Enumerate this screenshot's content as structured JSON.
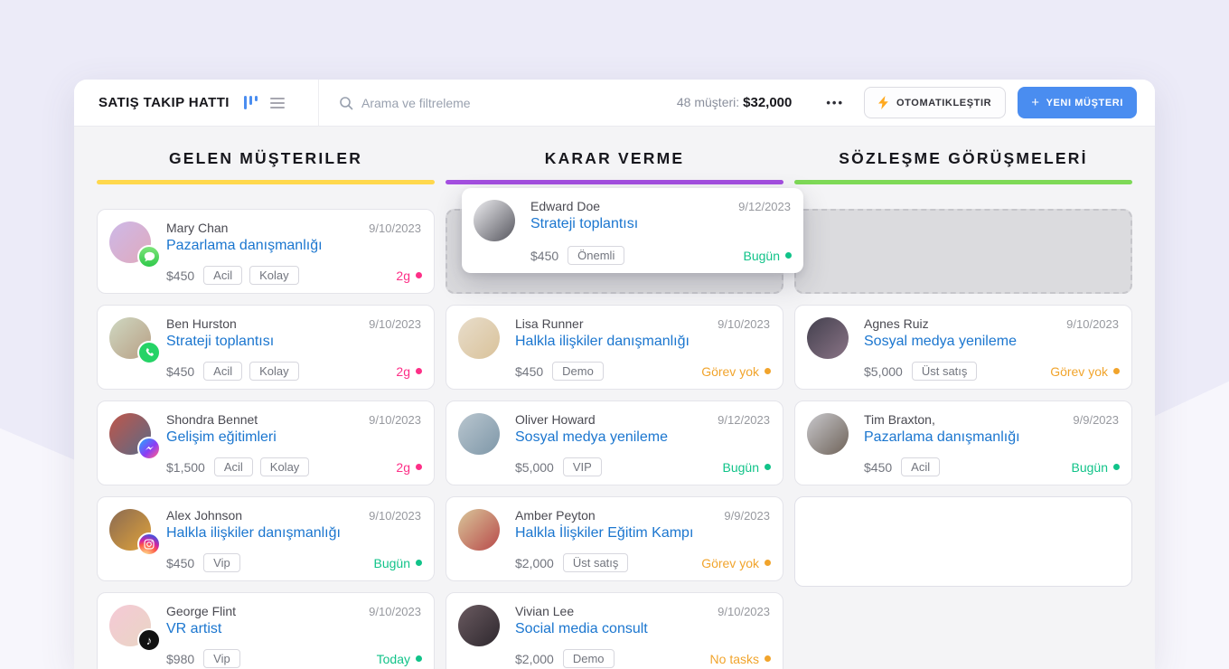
{
  "header": {
    "title": "SATIŞ TAKIP HATTI",
    "search_placeholder": "Arama ve filtreleme",
    "stats_label": "48 müşteri:",
    "stats_value": "$32,000",
    "more_label": "•••",
    "automate_label": "OTOMATIKLEŞTIR",
    "new_customer_plus": "+",
    "new_customer_label": "YENI MÜŞTERI",
    "icons": {
      "kanban_view": "kanban-columns-icon",
      "list_view": "list-menu-icon",
      "search": "search-icon",
      "more": "more-dots-icon",
      "automate_bolt": "lightning-icon",
      "new_plus": "plus-icon"
    }
  },
  "colors": {
    "accent_blue": "#4a8df0",
    "status_green": "#11c389",
    "status_pink": "#fd2f87",
    "status_amber": "#f1a42c",
    "column_accents": [
      "#ffd84d",
      "#a44fe0",
      "#7ed957"
    ]
  },
  "board": {
    "columns": [
      {
        "title": "GELEN MÜŞTERILER",
        "accent": "#ffd84d",
        "items": [
          {
            "kind": "card",
            "name": "Mary Chan",
            "date": "9/10/2023",
            "title": "Pazarlama danışmanlığı",
            "price": "$450",
            "tags": [
              "Acil",
              "Kolay"
            ],
            "status": "2g",
            "status_color": "pink",
            "social": "imessage",
            "avatar": [
              "#cdb9e8",
              "#e0a9bd"
            ]
          },
          {
            "kind": "card",
            "name": "Ben Hurston",
            "date": "9/10/2023",
            "title": "Strateji toplantısı",
            "price": "$450",
            "tags": [
              "Acil",
              "Kolay"
            ],
            "status": "2g",
            "status_color": "pink",
            "social": "whatsapp",
            "avatar": [
              "#cfd8c2",
              "#b89f84"
            ]
          },
          {
            "kind": "card",
            "name": "Shondra Bennet",
            "date": "9/10/2023",
            "title": "Gelişim eğitimleri",
            "price": "$1,500",
            "tags": [
              "Acil",
              "Kolay"
            ],
            "status": "2g",
            "status_color": "pink",
            "social": "messenger",
            "avatar": [
              "#c0564a",
              "#5a6a86"
            ]
          },
          {
            "kind": "card",
            "name": "Alex Johnson",
            "date": "9/10/2023",
            "title": "Halkla ilişkiler danışmanlığı",
            "price": "$450",
            "tags": [
              "Vip"
            ],
            "status": "Bugün",
            "status_color": "green",
            "social": "instagram",
            "avatar": [
              "#8a6a52",
              "#e0a33a"
            ]
          },
          {
            "kind": "card",
            "name": "George Flint",
            "date": "9/10/2023",
            "title": "VR artist",
            "price": "$980",
            "tags": [
              "Vip"
            ],
            "status": "Today",
            "status_color": "green",
            "social": "tiktok",
            "avatar": [
              "#f5c9d6",
              "#e9d5c4"
            ]
          }
        ]
      },
      {
        "title": "KARAR VERME",
        "accent": "#a44fe0",
        "items": [
          {
            "kind": "placeholder"
          },
          {
            "kind": "card",
            "name": "Lisa Runner",
            "date": "9/10/2023",
            "title": "Halkla ilişkiler danışmanlığı",
            "price": "$450",
            "tags": [
              "Demo"
            ],
            "status": "Görev yok",
            "status_color": "amber",
            "social": null,
            "avatar": [
              "#e8ddcb",
              "#d9c29a"
            ]
          },
          {
            "kind": "card",
            "name": "Oliver Howard",
            "date": "9/12/2023",
            "title": "Sosyal medya yenileme",
            "price": "$5,000",
            "tags": [
              "VIP"
            ],
            "status": "Bugün",
            "status_color": "green",
            "social": null,
            "avatar": [
              "#b9c6cf",
              "#7e97a8"
            ]
          },
          {
            "kind": "card",
            "name": "Amber Peyton",
            "date": "9/9/2023",
            "title": "Halkla İlişkiler Eğitim Kampı",
            "price": "$2,000",
            "tags": [
              "Üst satış"
            ],
            "status": "Görev yok",
            "status_color": "amber",
            "social": null,
            "avatar": [
              "#d9c69a",
              "#b84a4a"
            ]
          },
          {
            "kind": "card",
            "name": "Vivian Lee",
            "date": "9/10/2023",
            "title": "Social media consult",
            "price": "$2,000",
            "tags": [
              "Demo"
            ],
            "status": "No tasks",
            "status_color": "amber",
            "social": null,
            "avatar": [
              "#6a5a60",
              "#2e282e"
            ]
          }
        ]
      },
      {
        "title": "SÖZLEŞME GÖRÜŞMELERİ",
        "accent": "#7ed957",
        "items": [
          {
            "kind": "placeholder"
          },
          {
            "kind": "card",
            "name": "Agnes Ruiz",
            "date": "9/10/2023",
            "title": "Sosyal medya yenileme",
            "price": "$5,000",
            "tags": [
              "Üst satış"
            ],
            "status": "Görev yok",
            "status_color": "amber",
            "social": null,
            "avatar": [
              "#43404e",
              "#8a7486"
            ]
          },
          {
            "kind": "card",
            "name": "Tim Braxton,",
            "date": "9/9/2023",
            "title": "Pazarlama danışmanlığı",
            "price": "$450",
            "tags": [
              "Acil"
            ],
            "status": "Bugün",
            "status_color": "green",
            "social": null,
            "avatar": [
              "#c8c8cc",
              "#6e6258"
            ]
          },
          {
            "kind": "empty"
          }
        ]
      }
    ]
  },
  "dragged_card": {
    "name": "Edward Doe",
    "date": "9/12/2023",
    "title": "Strateji toplantısı",
    "price": "$450",
    "tag": "Önemli",
    "status": "Bugün",
    "status_color": "green",
    "avatar": [
      "#ededf0",
      "#56565e"
    ]
  }
}
